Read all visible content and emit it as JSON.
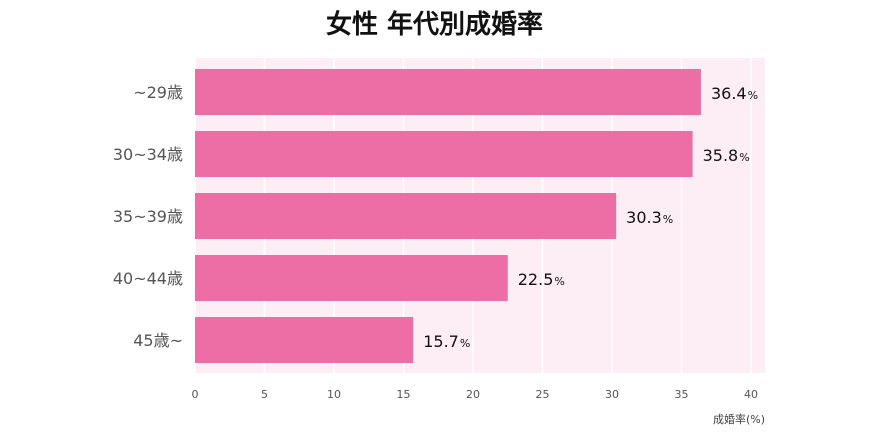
{
  "chart_data": {
    "type": "bar",
    "orientation": "horizontal",
    "title": "女性 年代別成婚率",
    "xlabel": "成婚率(%)",
    "ylabel": "",
    "categories": [
      "~29歳",
      "30~34歳",
      "35~39歳",
      "40~44歳",
      "45歳~"
    ],
    "values": [
      36.4,
      35.8,
      30.3,
      22.5,
      15.7
    ],
    "value_labels": [
      "36.4",
      "35.8",
      "30.3",
      "22.5",
      "15.7"
    ],
    "value_unit": "%",
    "xlim": [
      0,
      40
    ],
    "xticks": [
      "0",
      "5",
      "10",
      "15",
      "20",
      "25",
      "30",
      "35",
      "40"
    ],
    "grid": "vertical",
    "colors": {
      "bar": "#ec6ea4",
      "plot_background": "#fdeef5",
      "grid": "#ffffff"
    }
  }
}
